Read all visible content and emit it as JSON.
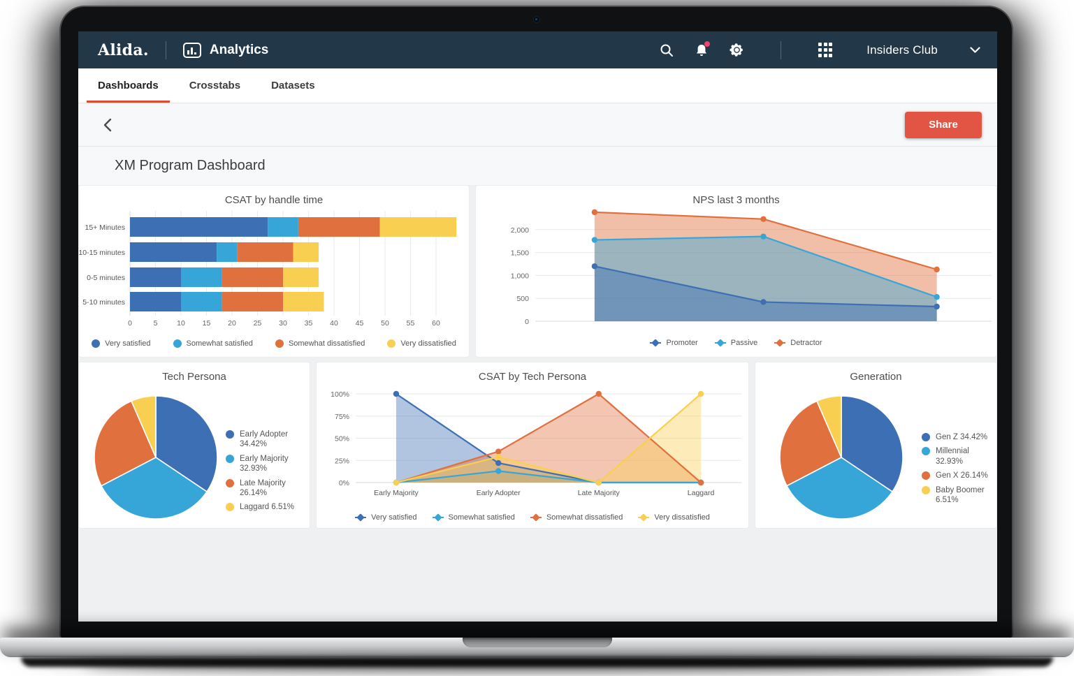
{
  "app": {
    "logo": "Alida.",
    "product_name": "Analytics",
    "account_name": "Insiders Club",
    "nav_icons": [
      "search-icon",
      "notifications-bell-icon",
      "settings-gear-icon",
      "apps-grid-icon",
      "chevron-down-icon"
    ],
    "notification_dot_color": "#f5436e",
    "navbar_color": "#223748",
    "accent_color": "#e0492f"
  },
  "tabs": [
    {
      "label": "Dashboards",
      "active": true
    },
    {
      "label": "Crosstabs",
      "active": false
    },
    {
      "label": "Datasets",
      "active": false
    }
  ],
  "toolbar": {
    "back_icon": "chevron-left-icon",
    "share_label": "Share",
    "share_color": "#e25443"
  },
  "page": {
    "title": "XM Program Dashboard"
  },
  "palette": {
    "blue": "#3d6fb4",
    "cyan": "#36a6d9",
    "orange": "#e0713e",
    "yellow": "#f9cf52"
  },
  "chart_data": [
    {
      "id": "csat-by-handle-time",
      "type": "bar",
      "orientation": "horizontal",
      "stacked": true,
      "title": "CSAT by handle time",
      "categories": [
        "15+ Minutes",
        "10-15 minutes",
        "0-5 minutes",
        "5-10 minutes"
      ],
      "series": [
        {
          "name": "Very satisfied",
          "color": "#3d6fb4",
          "values": [
            27,
            17,
            10,
            10
          ]
        },
        {
          "name": "Somewhat satisfied",
          "color": "#36a6d9",
          "values": [
            6,
            4,
            8,
            8
          ]
        },
        {
          "name": "Somewhat dissatisfied",
          "color": "#e0713e",
          "values": [
            16,
            11,
            12,
            12
          ]
        },
        {
          "name": "Very dissatisfied",
          "color": "#f9cf52",
          "values": [
            15,
            5,
            7,
            8
          ]
        }
      ],
      "xlim": [
        0,
        65
      ],
      "xticks": [
        0,
        5,
        10,
        15,
        20,
        25,
        30,
        35,
        40,
        45,
        50,
        55,
        60
      ],
      "grid": true,
      "legend_position": "bottom"
    },
    {
      "id": "nps-last-3-months",
      "type": "area",
      "title": "NPS last 3 months",
      "x": [
        1,
        2,
        3
      ],
      "series": [
        {
          "name": "Promoter",
          "color": "#3d6fb4",
          "values": [
            1200,
            420,
            320
          ]
        },
        {
          "name": "Passive",
          "color": "#36a6d9",
          "values": [
            1775,
            1850,
            530
          ]
        },
        {
          "name": "Detractor",
          "color": "#e0713e",
          "values": [
            2380,
            2230,
            1130
          ]
        }
      ],
      "ylim": [
        0,
        2500
      ],
      "yticks": [
        0,
        500,
        1000,
        1500,
        2000
      ],
      "ytick_labels": [
        "0",
        "500",
        "1,000",
        "1,500",
        "2,000"
      ],
      "grid": true,
      "legend_position": "bottom"
    },
    {
      "id": "tech-persona",
      "type": "pie",
      "title": "Tech Persona",
      "slices": [
        {
          "label": "Early Adopter",
          "value": 34.42,
          "color": "#3d6fb4"
        },
        {
          "label": "Early Majority",
          "value": 32.93,
          "color": "#36a6d9"
        },
        {
          "label": "Late Majority",
          "value": 26.14,
          "color": "#e0713e"
        },
        {
          "label": "Laggard",
          "value": 6.51,
          "color": "#f9cf52"
        }
      ],
      "legend_position": "right",
      "legend_format": "{label} {value}%"
    },
    {
      "id": "csat-by-tech-persona",
      "type": "area",
      "title": "CSAT by Tech Persona",
      "categories": [
        "Early Majority",
        "Early Adopter",
        "Late Majority",
        "Laggard"
      ],
      "series": [
        {
          "name": "Very satisfied",
          "color": "#3d6fb4",
          "values": [
            100,
            22,
            0,
            0
          ]
        },
        {
          "name": "Somewhat satisfied",
          "color": "#36a6d9",
          "values": [
            0,
            13,
            0,
            0
          ]
        },
        {
          "name": "Somewhat dissatisfied",
          "color": "#e0713e",
          "values": [
            0,
            35,
            100,
            0
          ]
        },
        {
          "name": "Very dissatisfied",
          "color": "#f9cf52",
          "values": [
            0,
            29,
            0,
            100
          ]
        }
      ],
      "ylim": [
        0,
        100
      ],
      "yticks": [
        0,
        25,
        50,
        75,
        100
      ],
      "ytick_labels": [
        "0%",
        "25%",
        "50%",
        "75%",
        "100%"
      ],
      "grid": true,
      "legend_position": "bottom"
    },
    {
      "id": "generation",
      "type": "pie",
      "title": "Generation",
      "slices": [
        {
          "label": "Gen Z",
          "value": 34.42,
          "color": "#3d6fb4"
        },
        {
          "label": "Millennial",
          "value": 32.93,
          "color": "#36a6d9"
        },
        {
          "label": "Gen X",
          "value": 26.14,
          "color": "#e0713e"
        },
        {
          "label": "Baby Boomer",
          "value": 6.51,
          "color": "#f9cf52"
        }
      ],
      "legend_position": "right",
      "legend_format": "{label} {value}%"
    }
  ]
}
